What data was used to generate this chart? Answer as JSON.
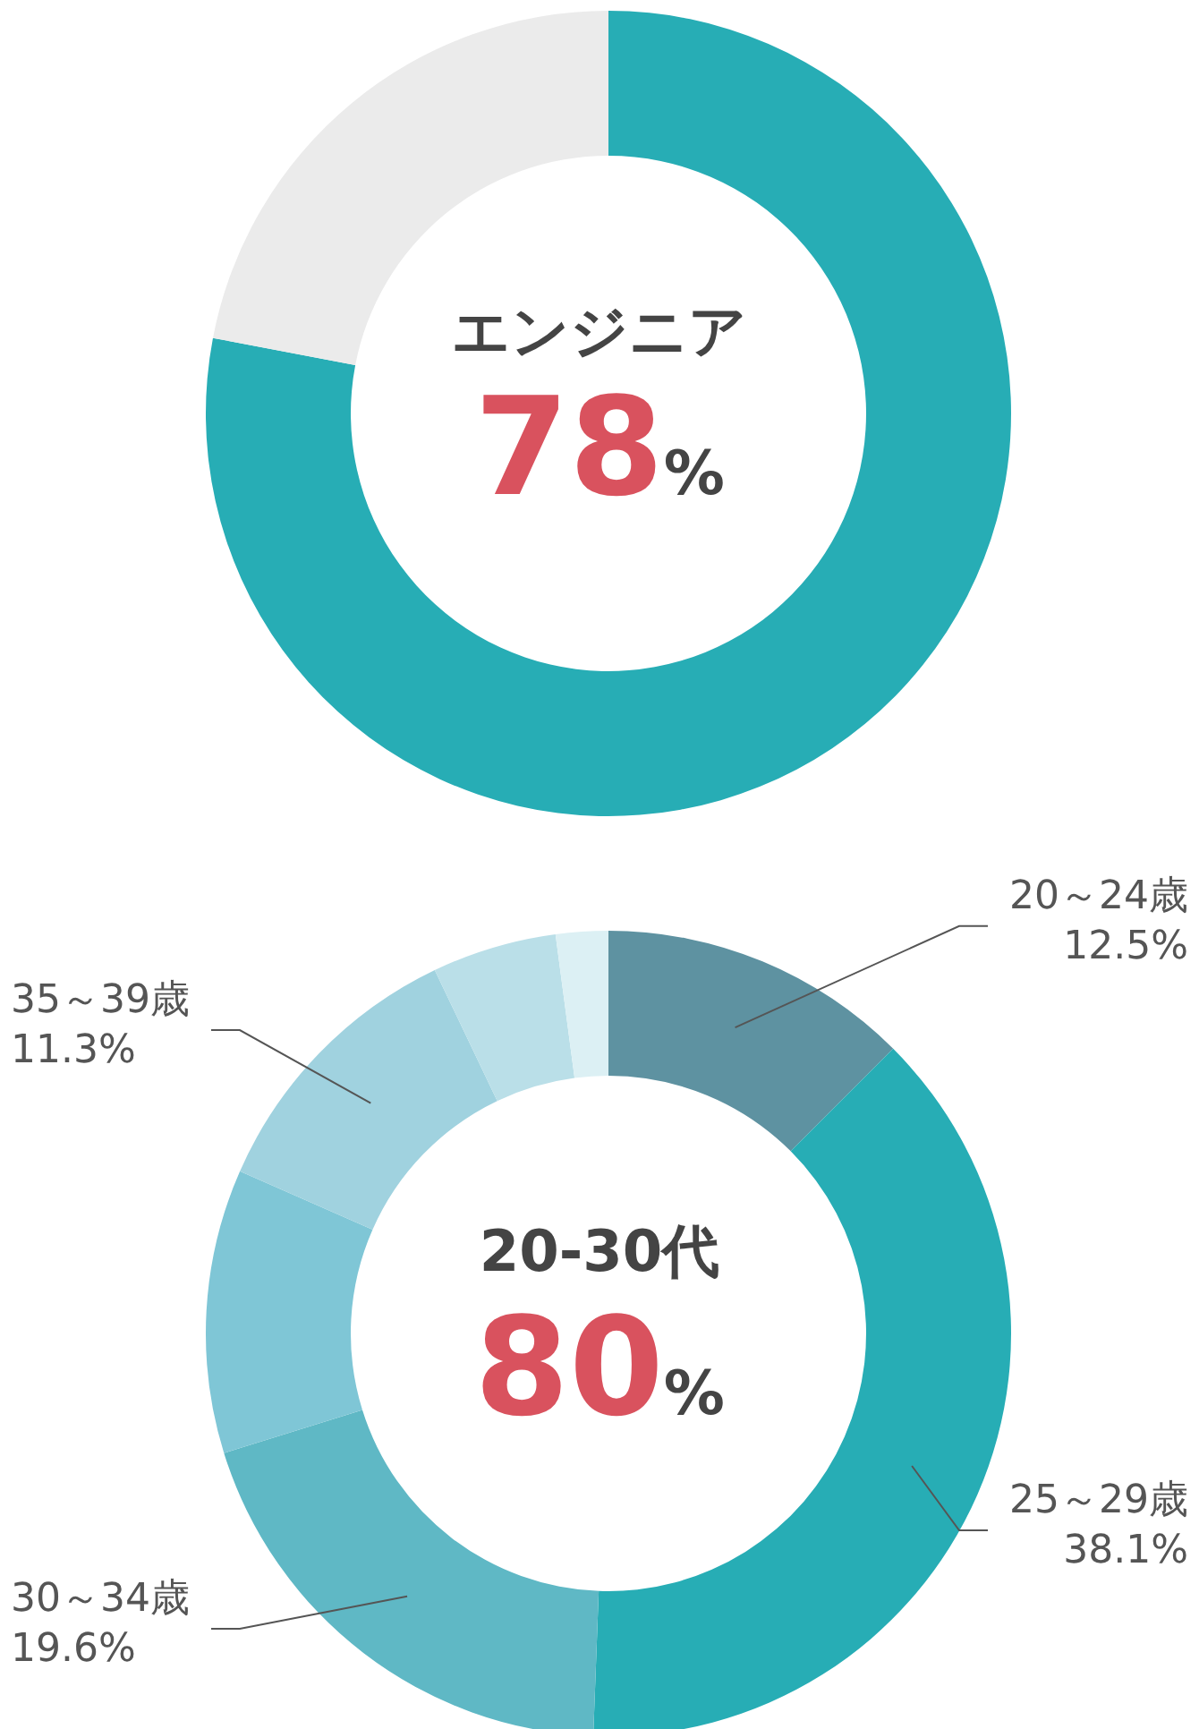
{
  "chart_data": [
    {
      "type": "donut",
      "title": "エンジニア",
      "annotations": [
        "78%"
      ],
      "categories": [
        null,
        null
      ],
      "values": [
        78,
        22
      ],
      "colors": [
        "#27adb5",
        "#ebebeb"
      ]
    },
    {
      "type": "donut",
      "title": "20-30代",
      "annotations": [
        "80%"
      ],
      "categories": [
        "20～24歳",
        "25～29歳",
        "30～34歳",
        null,
        "35～39歳",
        null,
        null
      ],
      "values": [
        12.5,
        38.1,
        19.6,
        11.4,
        11.3,
        5.0,
        2.1
      ],
      "colors": [
        "#5e92a1",
        "#27adb5",
        "#5fb8c5",
        "#7fc6d6",
        "#a0d2df",
        "#badfe8",
        "#dcf0f4"
      ],
      "value_labels": [
        "12.5%",
        "38.1%",
        "19.6%",
        null,
        "11.3%",
        null,
        null
      ]
    }
  ]
}
